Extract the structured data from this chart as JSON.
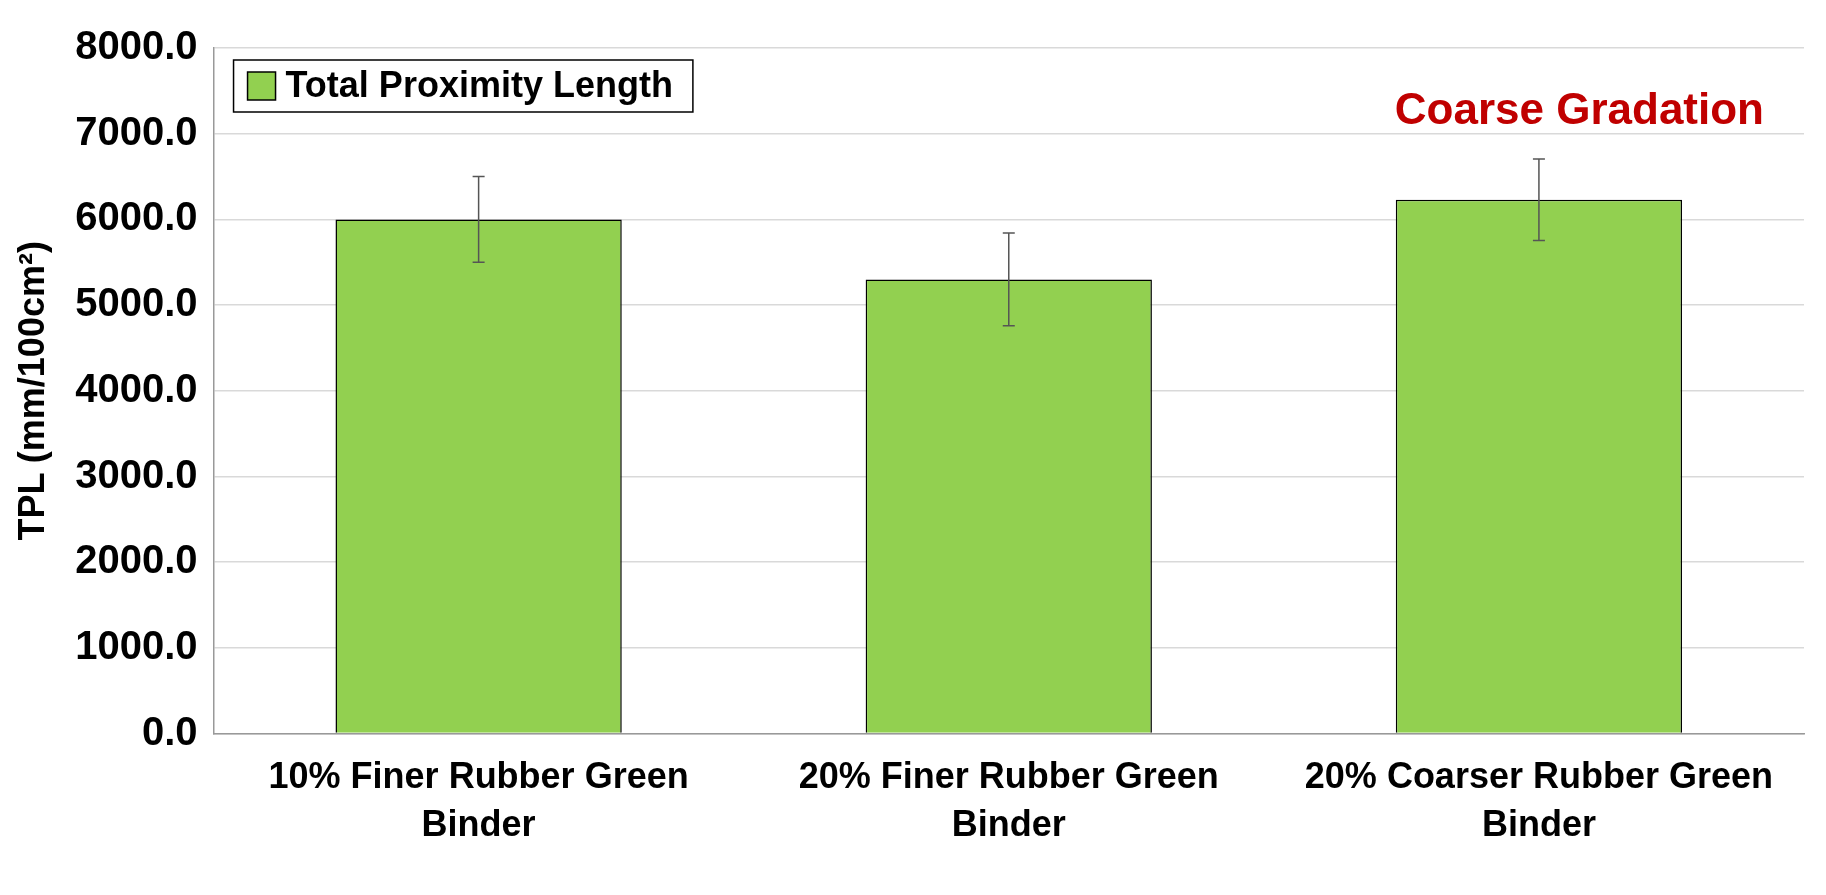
{
  "chart_data": {
    "type": "bar",
    "ylabel": "TPL (mm/100cm²)",
    "categories": [
      "10% Finer Rubber Green Binder",
      "20% Finer Rubber Green Binder",
      "20% Coarser Rubber Green Binder"
    ],
    "series": [
      {
        "name": "Total Proximity Length",
        "color": "#92d050",
        "values": [
          6000,
          5300,
          6230
        ],
        "errors": [
          500,
          540,
          475
        ]
      }
    ],
    "ylim": [
      0,
      8000
    ],
    "yticks": [
      {
        "value": 0,
        "label": "0.0"
      },
      {
        "value": 1000,
        "label": "1000.0"
      },
      {
        "value": 2000,
        "label": "2000.0"
      },
      {
        "value": 3000,
        "label": "3000.0"
      },
      {
        "value": 4000,
        "label": "4000.0"
      },
      {
        "value": 5000,
        "label": "5000.0"
      },
      {
        "value": 6000,
        "label": "6000.0"
      },
      {
        "value": 7000,
        "label": "7000.0"
      },
      {
        "value": 8000,
        "label": "8000.0"
      }
    ],
    "grid": "y",
    "legend": "top left",
    "annotations": [
      "Coarse Gradation"
    ]
  }
}
